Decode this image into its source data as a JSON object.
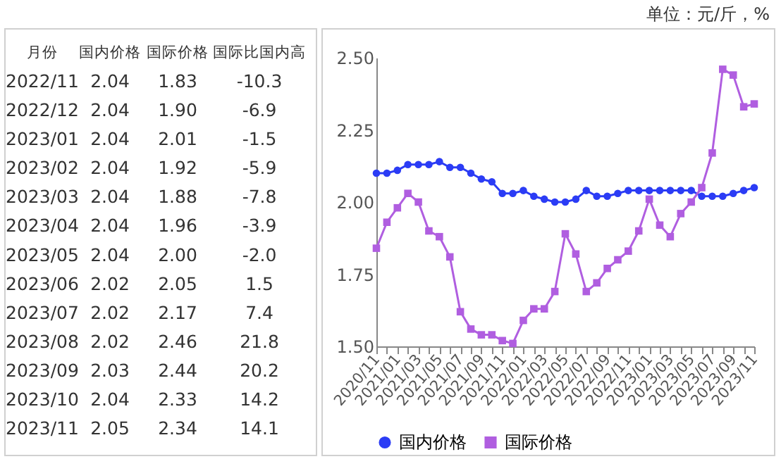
{
  "chart_data": [
    {
      "type": "other",
      "ylabel": "月份",
      "categories": [
        "2022/11",
        "2022/12",
        "2023/01",
        "2023/02",
        "2023/03",
        "2023/04",
        "2023/05",
        "2023/06",
        "2023/07",
        "2023/08",
        "2023/09",
        "2023/10",
        "2023/11"
      ],
      "series": [
        {
          "name": "国内价格",
          "values": [
            2.04,
            2.04,
            2.04,
            2.04,
            2.04,
            2.04,
            2.04,
            2.02,
            2.02,
            2.02,
            2.03,
            2.04,
            2.05
          ],
          "value_labels": [
            "2.04",
            "2.04",
            "2.04",
            "2.04",
            "2.04",
            "2.04",
            "2.04",
            "2.02",
            "2.02",
            "2.02",
            "2.03",
            "2.04",
            "2.05"
          ]
        },
        {
          "name": "国际价格",
          "values": [
            1.83,
            1.9,
            2.01,
            1.92,
            1.88,
            1.96,
            2.0,
            2.05,
            2.17,
            2.46,
            2.44,
            2.33,
            2.34
          ],
          "value_labels": [
            "1.83",
            "1.90",
            "2.01",
            "1.92",
            "1.88",
            "1.96",
            "2.00",
            "2.05",
            "2.17",
            "2.46",
            "2.44",
            "2.33",
            "2.34"
          ]
        },
        {
          "name": "国际比国内高",
          "values": [
            -10.3,
            -6.9,
            -1.5,
            -5.9,
            -7.8,
            -3.9,
            -2.0,
            1.5,
            7.4,
            21.8,
            20.2,
            14.2,
            14.1
          ],
          "value_labels": [
            "-10.3",
            "-6.9",
            "-1.5",
            "-5.9",
            "-7.8",
            "-3.9",
            "-2.0",
            "1.5",
            "7.4",
            "21.8",
            "20.2",
            "14.2",
            "14.1"
          ]
        }
      ]
    },
    {
      "type": "line",
      "legend": "bottom",
      "grid": false,
      "annotations": [
        "单位：元/斤，%"
      ],
      "categories": [
        "2020/11",
        null,
        "2021/01",
        null,
        "2021/03",
        null,
        "2021/05",
        null,
        "2021/07",
        null,
        "2021/09",
        null,
        "2021/11",
        null,
        "2022/01",
        null,
        "2022/03",
        null,
        "2022/05",
        null,
        "2022/07",
        null,
        "2022/09",
        null,
        "2022/11",
        null,
        "2023/01",
        null,
        "2023/03",
        null,
        "2023/05",
        null,
        "2023/07",
        null,
        "2023/09",
        null,
        "2023/11"
      ],
      "ylim": [
        1.5,
        2.5
      ],
      "yticks": [
        {
          "value": 1.5,
          "label": "1.50"
        },
        {
          "value": 1.75,
          "label": "1.75"
        },
        {
          "value": 2.0,
          "label": "2.00"
        },
        {
          "value": 2.25,
          "label": "2.25"
        },
        {
          "value": 2.5,
          "label": "2.50"
        }
      ],
      "series": [
        {
          "name": "国内价格",
          "color": "#2b3cf5",
          "marker": "circle",
          "values": [
            2.1,
            2.1,
            2.11,
            2.13,
            2.13,
            2.13,
            2.14,
            2.12,
            2.12,
            2.1,
            2.08,
            2.07,
            2.03,
            2.03,
            2.04,
            2.02,
            2.01,
            2.0,
            2.0,
            2.01,
            2.04,
            2.02,
            2.02,
            2.03,
            2.04,
            2.04,
            2.04,
            2.04,
            2.04,
            2.04,
            2.04,
            2.02,
            2.02,
            2.02,
            2.03,
            2.04,
            2.05
          ]
        },
        {
          "name": "国际价格",
          "color": "#b05ee0",
          "marker": "square",
          "values": [
            1.84,
            1.93,
            1.98,
            2.03,
            2.0,
            1.9,
            1.88,
            1.81,
            1.62,
            1.56,
            1.54,
            1.54,
            1.52,
            1.51,
            1.59,
            1.63,
            1.63,
            1.69,
            1.89,
            1.82,
            1.69,
            1.72,
            1.77,
            1.8,
            1.83,
            1.9,
            2.01,
            1.92,
            1.88,
            1.96,
            2.0,
            2.05,
            2.17,
            2.46,
            2.44,
            2.33,
            2.34
          ]
        }
      ]
    }
  ]
}
